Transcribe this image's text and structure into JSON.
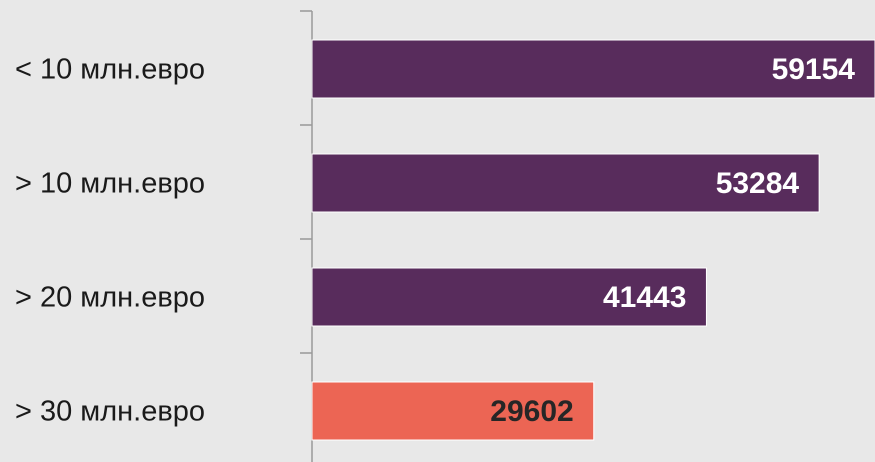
{
  "chart_data": {
    "type": "hbar",
    "categories": [
      "< 10 млн.евро",
      "> 10 млн.евро",
      "> 20 млн.евро",
      "> 30 млн.евро"
    ],
    "values": [
      59154,
      53284,
      41443,
      29602
    ],
    "colors": [
      "#582c5c",
      "#582c5c",
      "#582c5c",
      "#ec6554"
    ],
    "label_colors": [
      "#ffffff",
      "#ffffff",
      "#ffffff",
      "#262626"
    ],
    "xlim": [
      0,
      59154
    ]
  }
}
